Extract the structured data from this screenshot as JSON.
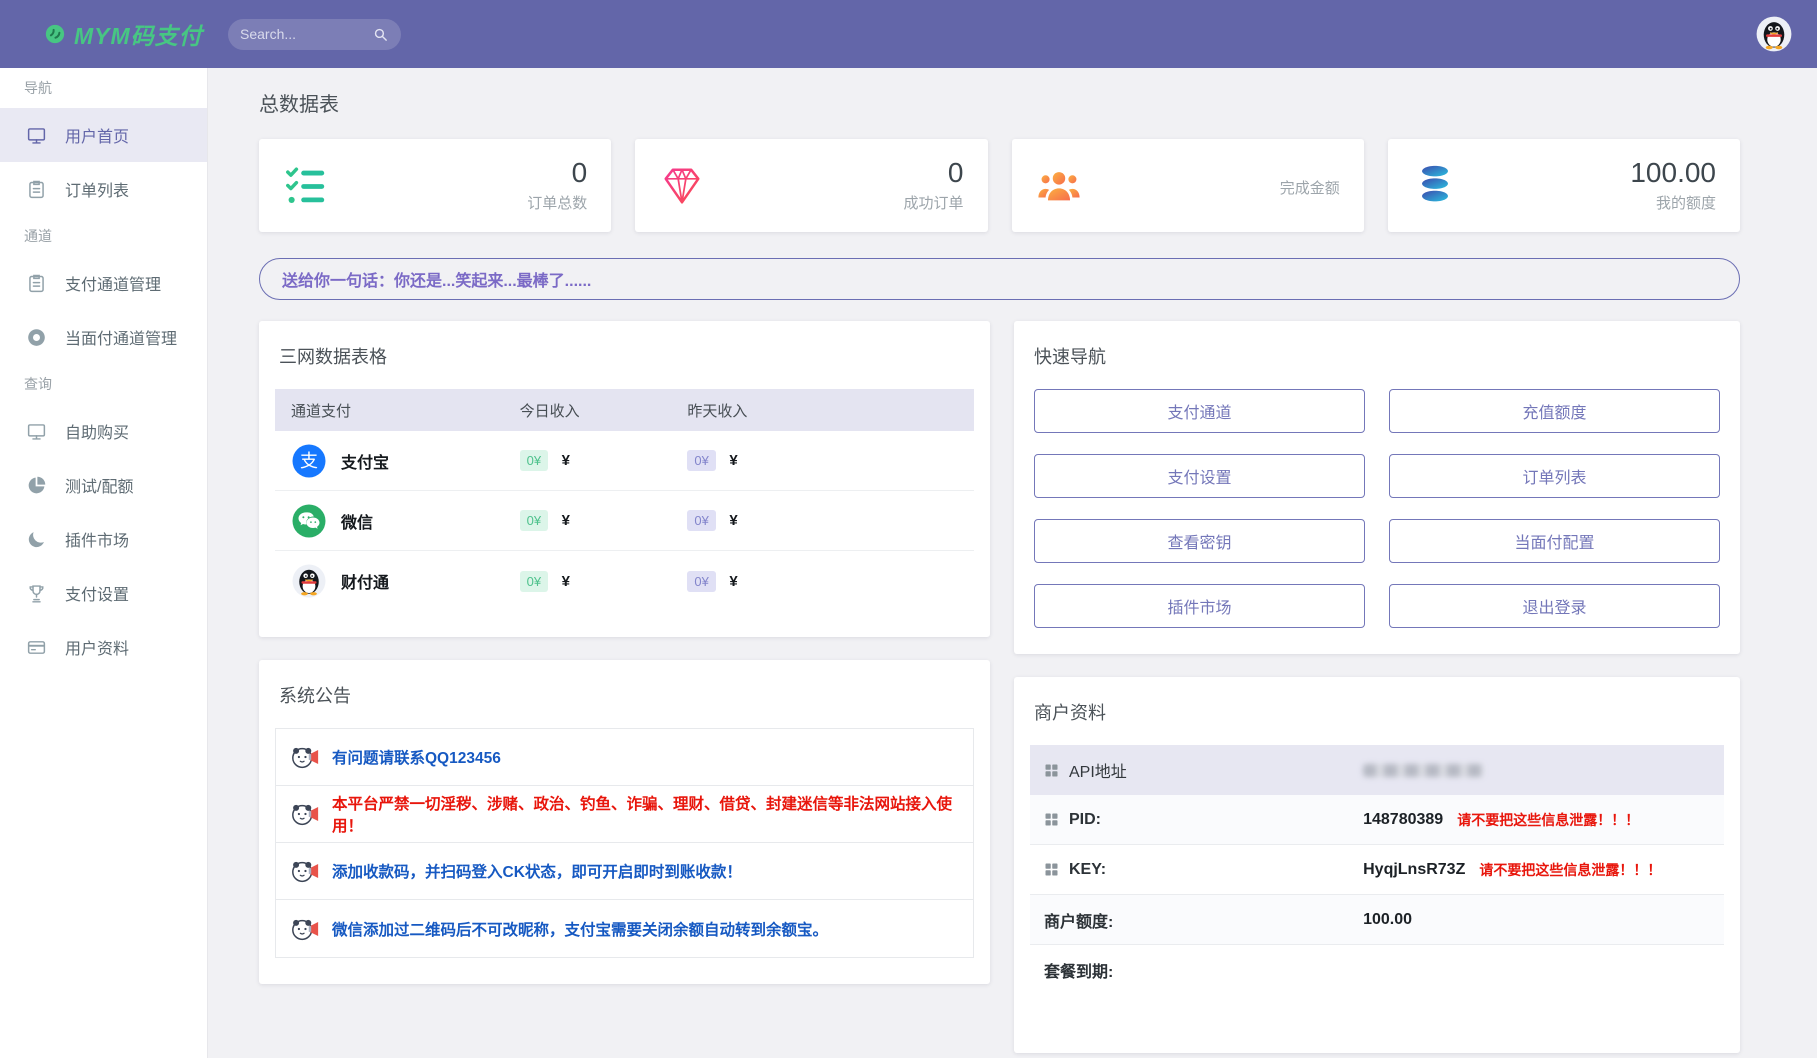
{
  "colors": {
    "header_bg": "#6366a9",
    "logo_green": "#47c683",
    "accent_purple": "#7477b9",
    "active_purple": "#6366a9",
    "page_bg": "#f1f1f4",
    "table_header_bg": "#e4e4f1",
    "badge_green_bg": "#dcf5e9",
    "badge_green_text": "#4fc28d",
    "badge_purple_bg": "#e0e0f5",
    "badge_purple_text": "#8385cc",
    "announce_blue": "#1659c2",
    "announce_red": "#e8160c",
    "quote_purple": "#7b6ac6",
    "alipay_blue": "#1678ff",
    "wechat_green": "#2aae67"
  },
  "header": {
    "logo": "MYM码支付",
    "search_placeholder": "Search...",
    "avatar_icon": "qq-penguin-icon"
  },
  "sidebar": {
    "sections": [
      {
        "label": "导航",
        "items": [
          {
            "name": "home",
            "label": "用户首页",
            "icon": "monitor-icon",
            "active": true
          },
          {
            "name": "order-list",
            "label": "订单列表",
            "icon": "clipboard-icon"
          }
        ]
      },
      {
        "label": "通道",
        "items": [
          {
            "name": "pay-channel-manage",
            "label": "支付通道管理",
            "icon": "clipboard-icon"
          },
          {
            "name": "f2f-channel-manage",
            "label": "当面付通道管理",
            "icon": "lifebuoy-icon"
          }
        ]
      },
      {
        "label": "查询",
        "items": [
          {
            "name": "self-service-buy",
            "label": "自助购买",
            "icon": "monitor-icon"
          },
          {
            "name": "test-quota",
            "label": "测试/配额",
            "icon": "pie-icon"
          },
          {
            "name": "plugin-market",
            "label": "插件市场",
            "icon": "crescent-icon"
          },
          {
            "name": "pay-settings",
            "label": "支付设置",
            "icon": "trophy-icon"
          },
          {
            "name": "user-profile",
            "label": "用户资料",
            "icon": "bankcard-icon"
          }
        ]
      }
    ]
  },
  "page_title": "总数据表",
  "stat_cards": [
    {
      "name": "total-orders",
      "icon": "checklist-icon",
      "value": "0",
      "label": "订单总数"
    },
    {
      "name": "success-orders",
      "icon": "diamond-icon",
      "value": "0",
      "label": "成功订单"
    },
    {
      "name": "completed-amount",
      "icon": "users-icon",
      "value": "",
      "label": "完成金额"
    },
    {
      "name": "my-quota",
      "icon": "database-icon",
      "value": "100.00",
      "label": "我的额度"
    }
  ],
  "quote_banner": "送给你一句话：你还是...笑起来...最棒了......",
  "channel_table": {
    "title": "三网数据表格",
    "columns": [
      "通道支付",
      "今日收入",
      "昨天收入"
    ],
    "rows": [
      {
        "name": "alipay",
        "label": "支付宝",
        "icon": "alipay-icon",
        "today_badge": "0¥",
        "today_unit": "¥",
        "yesterday_badge": "0¥",
        "yesterday_unit": "¥"
      },
      {
        "name": "wechat",
        "label": "微信",
        "icon": "wechat-icon",
        "today_badge": "0¥",
        "today_unit": "¥",
        "yesterday_badge": "0¥",
        "yesterday_unit": "¥"
      },
      {
        "name": "tenpay",
        "label": "财付通",
        "icon": "qq-penguin-icon",
        "today_badge": "0¥",
        "today_unit": "¥",
        "yesterday_badge": "0¥",
        "yesterday_unit": "¥"
      }
    ]
  },
  "quick_nav": {
    "title": "快速导航",
    "buttons": [
      {
        "name": "pay-channel",
        "label": "支付通道"
      },
      {
        "name": "recharge-quota",
        "label": "充值额度"
      },
      {
        "name": "pay-settings",
        "label": "支付设置"
      },
      {
        "name": "order-list",
        "label": "订单列表"
      },
      {
        "name": "view-secret-key",
        "label": "查看密钥"
      },
      {
        "name": "f2f-config",
        "label": "当面付配置"
      },
      {
        "name": "plugin-market",
        "label": "插件市场"
      },
      {
        "name": "logout",
        "label": "退出登录"
      }
    ]
  },
  "announcements": {
    "title": "系统公告",
    "icon": "announcer-mascot-icon",
    "items": [
      {
        "text": "有问题请联系QQ123456",
        "color": "blue"
      },
      {
        "text": "本平台严禁一切淫秽、涉赌、政治、钓鱼、诈骗、理财、借贷、封建迷信等非法网站接入使用！",
        "color": "red"
      },
      {
        "text": "添加收款码，并扫码登入CK状态，即可开启即时到账收款！",
        "color": "blue"
      },
      {
        "text": "微信添加过二维码后不可改昵称，支付宝需要关闭余额自动转到余额宝。",
        "color": "blue"
      }
    ]
  },
  "merchant": {
    "title": "商户资料",
    "rows": [
      {
        "label": "API地址",
        "value": "",
        "redacted": true,
        "grid_icon": true,
        "highlight": true
      },
      {
        "label": "PID:",
        "value": "148780389",
        "warning": "请不要把这些信息泄露！！！",
        "grid_icon": true
      },
      {
        "label": "KEY:",
        "value": "HyqjLnsR73Z",
        "warning": "请不要把这些信息泄露！！！",
        "grid_icon": true
      },
      {
        "label": "商户额度:",
        "value": "100.00"
      },
      {
        "label": "套餐到期:",
        "value": ""
      }
    ]
  }
}
